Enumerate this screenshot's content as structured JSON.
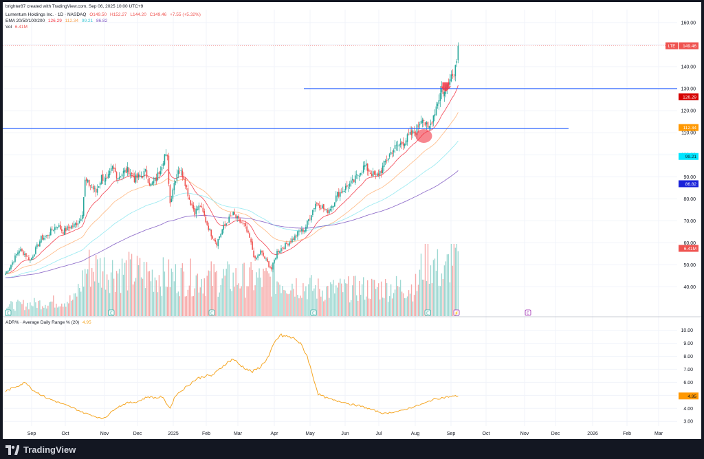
{
  "header": {
    "created_by": "brighter87 created with TradingView.com, Sep 06, 2025 10:00 UTC+9",
    "symbol_line": "Lumentum Holdings Inc. · 1D · NASDAQ",
    "ohlc": {
      "o": "O149.50",
      "h": "H152.27",
      "l": "L144.20",
      "c": "C149.46",
      "chg": "+7.55 (+5.32%)"
    },
    "ema_label": "EMA 20/50/100/200",
    "ema_values": [
      "126.29",
      "112.34",
      "99.21",
      "86.82"
    ],
    "vol_label": "Vol",
    "vol_value": "6.41M",
    "adr_label": "ADR% · Average Daily Range % (20)",
    "adr_value": "4.95"
  },
  "footer": {
    "brand": "TradingView"
  },
  "colors": {
    "up": "#26a69a",
    "down": "#ef5350",
    "ema20": "#f23645",
    "ema50": "#ffb47a",
    "ema100": "#8ee7f0",
    "ema200": "#7e57c2",
    "hline": "#2962ff",
    "adr": "#f5a623"
  },
  "chart_data": [
    {
      "type": "candlestick",
      "title": "Lumentum Holdings Inc. · 1D · NASDAQ",
      "ticker": "LTE",
      "last_price": "149.46",
      "price_axis_ticks": [
        "160.00",
        "140.00",
        "130.00",
        "120.00",
        "110.00",
        "100.00",
        "90.00",
        "80.00",
        "70.00",
        "60.00",
        "50.00",
        "40.00"
      ],
      "ylim": [
        33,
        164
      ],
      "time_axis_labels": [
        "Sep",
        "Oct",
        "Nov",
        "Dec",
        "2025",
        "Feb",
        "Mar",
        "Apr",
        "May",
        "Jun",
        "Jul",
        "Aug",
        "Sep",
        "Oct",
        "Nov",
        "Dec",
        "2026",
        "Feb",
        "Mar"
      ],
      "horizontal_lines": [
        130,
        112
      ],
      "ema_labels": [
        {
          "name": "EMA20",
          "value": "126.29",
          "color": "#f23645"
        },
        {
          "name": "EMA50",
          "value": "112.34",
          "color": "#ffb47a"
        },
        {
          "name": "EMA100",
          "value": "99.21",
          "color": "#8ee7f0"
        },
        {
          "name": "EMA200",
          "value": "86.82",
          "color": "#7e57c2"
        }
      ],
      "volume_label": "6.41M",
      "price_anchors": [
        [
          0,
          46
        ],
        [
          4,
          50
        ],
        [
          10,
          57
        ],
        [
          14,
          55
        ],
        [
          18,
          52
        ],
        [
          22,
          57
        ],
        [
          26,
          62
        ],
        [
          30,
          63
        ],
        [
          34,
          66
        ],
        [
          38,
          68
        ],
        [
          42,
          65
        ],
        [
          46,
          67
        ],
        [
          50,
          68
        ],
        [
          54,
          70
        ],
        [
          56,
          74
        ],
        [
          58,
          88
        ],
        [
          62,
          86
        ],
        [
          66,
          83
        ],
        [
          70,
          90
        ],
        [
          74,
          88
        ],
        [
          78,
          94
        ],
        [
          82,
          90
        ],
        [
          86,
          92
        ],
        [
          90,
          93
        ],
        [
          94,
          89
        ],
        [
          98,
          90
        ],
        [
          102,
          92
        ],
        [
          106,
          86
        ],
        [
          110,
          89
        ],
        [
          114,
          96
        ],
        [
          116,
          100
        ],
        [
          118,
          98
        ],
        [
          120,
          78
        ],
        [
          122,
          85
        ],
        [
          126,
          94
        ],
        [
          130,
          90
        ],
        [
          134,
          80
        ],
        [
          138,
          74
        ],
        [
          142,
          77
        ],
        [
          146,
          70
        ],
        [
          150,
          64
        ],
        [
          154,
          60
        ],
        [
          158,
          66
        ],
        [
          162,
          70
        ],
        [
          166,
          73
        ],
        [
          170,
          70
        ],
        [
          174,
          68
        ],
        [
          178,
          62
        ],
        [
          182,
          52
        ],
        [
          186,
          56
        ],
        [
          190,
          52
        ],
        [
          194,
          48
        ],
        [
          198,
          56
        ],
        [
          202,
          58
        ],
        [
          206,
          60
        ],
        [
          210,
          62
        ],
        [
          214,
          65
        ],
        [
          218,
          66
        ],
        [
          222,
          72
        ],
        [
          226,
          78
        ],
        [
          230,
          77
        ],
        [
          234,
          74
        ],
        [
          238,
          77
        ],
        [
          242,
          82
        ],
        [
          246,
          84
        ],
        [
          250,
          86
        ],
        [
          254,
          88
        ],
        [
          258,
          92
        ],
        [
          262,
          95
        ],
        [
          266,
          92
        ],
        [
          270,
          90
        ],
        [
          274,
          93
        ],
        [
          278,
          98
        ],
        [
          282,
          102
        ],
        [
          286,
          104
        ],
        [
          290,
          106
        ],
        [
          294,
          108
        ],
        [
          298,
          110
        ],
        [
          300,
          112
        ],
        [
          302,
          115
        ],
        [
          304,
          118
        ],
        [
          306,
          114
        ],
        [
          308,
          111
        ],
        [
          310,
          114
        ],
        [
          312,
          118
        ],
        [
          314,
          122
        ],
        [
          316,
          126
        ],
        [
          318,
          130
        ],
        [
          320,
          128
        ],
        [
          322,
          132
        ],
        [
          324,
          137
        ],
        [
          326,
          136
        ],
        [
          328,
          140
        ],
        [
          330,
          149.46
        ]
      ],
      "volume_anchors": [
        [
          0,
          0.15
        ],
        [
          50,
          0.25
        ],
        [
          60,
          0.75
        ],
        [
          120,
          0.6
        ],
        [
          200,
          0.55
        ],
        [
          230,
          0.4
        ],
        [
          300,
          0.45
        ],
        [
          306,
          0.95
        ],
        [
          320,
          0.6
        ],
        [
          326,
          1.0
        ],
        [
          330,
          0.85
        ]
      ],
      "annotations": [
        {
          "kind": "circle",
          "x": 305,
          "price": 108.5,
          "color": "#f23645"
        },
        {
          "kind": "arrow-down",
          "x": 321,
          "price": 131,
          "color": "#f23645"
        }
      ]
    },
    {
      "type": "line",
      "title": "ADR% · Average Daily Range % (20)",
      "axis_ticks": [
        "10.00",
        "9.00",
        "8.00",
        "7.00",
        "6.00",
        "5.00",
        "4.00",
        "3.00"
      ],
      "ylim": [
        2.8,
        10.4
      ],
      "last_value": "4.95",
      "anchors": [
        [
          0,
          5.3
        ],
        [
          8,
          5.7
        ],
        [
          15,
          6.0
        ],
        [
          20,
          5.4
        ],
        [
          30,
          4.8
        ],
        [
          40,
          4.4
        ],
        [
          50,
          4.0
        ],
        [
          56,
          3.7
        ],
        [
          62,
          3.5
        ],
        [
          70,
          3.2
        ],
        [
          74,
          3.4
        ],
        [
          80,
          4.0
        ],
        [
          88,
          4.4
        ],
        [
          96,
          4.5
        ],
        [
          104,
          4.9
        ],
        [
          110,
          4.8
        ],
        [
          114,
          4.9
        ],
        [
          118,
          4.3
        ],
        [
          120,
          4.0
        ],
        [
          124,
          5.0
        ],
        [
          130,
          5.5
        ],
        [
          136,
          6.0
        ],
        [
          140,
          6.3
        ],
        [
          146,
          6.5
        ],
        [
          150,
          6.5
        ],
        [
          154,
          6.8
        ],
        [
          160,
          7.4
        ],
        [
          166,
          7.8
        ],
        [
          170,
          7.4
        ],
        [
          176,
          7.0
        ],
        [
          180,
          6.8
        ],
        [
          186,
          7.2
        ],
        [
          192,
          8.0
        ],
        [
          196,
          9.0
        ],
        [
          200,
          9.6
        ],
        [
          206,
          9.5
        ],
        [
          212,
          9.3
        ],
        [
          216,
          8.8
        ],
        [
          220,
          8.0
        ],
        [
          224,
          6.5
        ],
        [
          228,
          5.1
        ],
        [
          234,
          4.8
        ],
        [
          240,
          4.6
        ],
        [
          246,
          4.5
        ],
        [
          252,
          4.3
        ],
        [
          258,
          4.2
        ],
        [
          264,
          4.0
        ],
        [
          270,
          3.8
        ],
        [
          276,
          3.6
        ],
        [
          282,
          3.7
        ],
        [
          288,
          3.8
        ],
        [
          294,
          4.0
        ],
        [
          300,
          4.2
        ],
        [
          306,
          4.4
        ],
        [
          312,
          4.7
        ],
        [
          318,
          4.8
        ],
        [
          324,
          4.9
        ],
        [
          330,
          4.95
        ]
      ]
    }
  ]
}
